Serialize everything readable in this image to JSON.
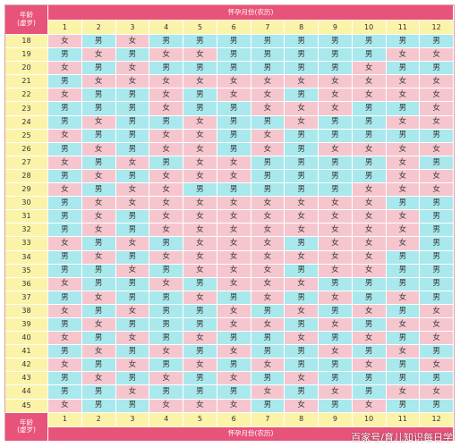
{
  "header": {
    "corner_line1": "年龄",
    "corner_line2": "(虚岁)",
    "title": "怀孕月份(农历)"
  },
  "months": [
    "1",
    "2",
    "3",
    "4",
    "5",
    "6",
    "7",
    "8",
    "9",
    "10",
    "11",
    "12"
  ],
  "labels": {
    "girl": "女",
    "boy": "男"
  },
  "colors": {
    "header": "#e8537a",
    "yellow": "#fbf3a8",
    "girl": "#f6c6cf",
    "boy": "#a9e8ed"
  },
  "rows": [
    {
      "age": "18",
      "cells": [
        "女",
        "男",
        "女",
        "男",
        "男",
        "男",
        "男",
        "男",
        "男",
        "男",
        "男",
        "男"
      ]
    },
    {
      "age": "19",
      "cells": [
        "男",
        "女",
        "男",
        "女",
        "女",
        "男",
        "男",
        "男",
        "男",
        "男",
        "女",
        "女"
      ]
    },
    {
      "age": "20",
      "cells": [
        "女",
        "男",
        "女",
        "男",
        "男",
        "男",
        "男",
        "男",
        "男",
        "女",
        "男",
        "男"
      ]
    },
    {
      "age": "21",
      "cells": [
        "男",
        "女",
        "女",
        "女",
        "女",
        "女",
        "女",
        "女",
        "女",
        "女",
        "女",
        "女"
      ]
    },
    {
      "age": "22",
      "cells": [
        "女",
        "男",
        "男",
        "女",
        "男",
        "女",
        "女",
        "男",
        "女",
        "女",
        "女",
        "女"
      ]
    },
    {
      "age": "23",
      "cells": [
        "男",
        "男",
        "男",
        "女",
        "男",
        "男",
        "女",
        "女",
        "女",
        "男",
        "男",
        "女"
      ]
    },
    {
      "age": "24",
      "cells": [
        "男",
        "女",
        "男",
        "男",
        "女",
        "男",
        "男",
        "女",
        "男",
        "男",
        "女",
        "女"
      ]
    },
    {
      "age": "25",
      "cells": [
        "女",
        "男",
        "男",
        "女",
        "女",
        "男",
        "女",
        "男",
        "男",
        "男",
        "男",
        "男"
      ]
    },
    {
      "age": "26",
      "cells": [
        "男",
        "女",
        "男",
        "女",
        "女",
        "男",
        "女",
        "男",
        "女",
        "女",
        "女",
        "女"
      ]
    },
    {
      "age": "27",
      "cells": [
        "女",
        "男",
        "女",
        "男",
        "女",
        "女",
        "男",
        "男",
        "男",
        "男",
        "女",
        "男"
      ]
    },
    {
      "age": "28",
      "cells": [
        "男",
        "女",
        "男",
        "女",
        "女",
        "女",
        "男",
        "男",
        "男",
        "男",
        "女",
        "女"
      ]
    },
    {
      "age": "29",
      "cells": [
        "女",
        "男",
        "女",
        "女",
        "男",
        "男",
        "男",
        "男",
        "男",
        "女",
        "女",
        "女"
      ]
    },
    {
      "age": "30",
      "cells": [
        "男",
        "女",
        "女",
        "女",
        "女",
        "女",
        "女",
        "女",
        "女",
        "女",
        "男",
        "男"
      ]
    },
    {
      "age": "31",
      "cells": [
        "男",
        "女",
        "男",
        "女",
        "女",
        "女",
        "女",
        "女",
        "女",
        "女",
        "女",
        "男"
      ]
    },
    {
      "age": "32",
      "cells": [
        "男",
        "女",
        "男",
        "女",
        "女",
        "女",
        "女",
        "女",
        "女",
        "女",
        "女",
        "男"
      ]
    },
    {
      "age": "33",
      "cells": [
        "女",
        "男",
        "女",
        "男",
        "女",
        "女",
        "女",
        "男",
        "女",
        "女",
        "女",
        "男"
      ]
    },
    {
      "age": "34",
      "cells": [
        "男",
        "女",
        "男",
        "女",
        "女",
        "女",
        "女",
        "女",
        "女",
        "女",
        "男",
        "男"
      ]
    },
    {
      "age": "35",
      "cells": [
        "男",
        "男",
        "女",
        "男",
        "女",
        "女",
        "女",
        "男",
        "女",
        "女",
        "男",
        "男"
      ]
    },
    {
      "age": "36",
      "cells": [
        "女",
        "男",
        "男",
        "女",
        "男",
        "女",
        "女",
        "女",
        "男",
        "男",
        "男",
        "男"
      ]
    },
    {
      "age": "37",
      "cells": [
        "男",
        "女",
        "男",
        "男",
        "女",
        "男",
        "女",
        "男",
        "女",
        "男",
        "女",
        "男"
      ]
    },
    {
      "age": "38",
      "cells": [
        "女",
        "男",
        "女",
        "男",
        "男",
        "女",
        "男",
        "女",
        "男",
        "女",
        "男",
        "女"
      ]
    },
    {
      "age": "39",
      "cells": [
        "男",
        "女",
        "男",
        "男",
        "男",
        "女",
        "女",
        "男",
        "女",
        "男",
        "女",
        "女"
      ]
    },
    {
      "age": "40",
      "cells": [
        "女",
        "男",
        "女",
        "男",
        "女",
        "男",
        "男",
        "女",
        "男",
        "女",
        "男",
        "女"
      ]
    },
    {
      "age": "41",
      "cells": [
        "男",
        "女",
        "男",
        "女",
        "男",
        "女",
        "男",
        "男",
        "女",
        "男",
        "女",
        "男"
      ]
    },
    {
      "age": "42",
      "cells": [
        "女",
        "男",
        "女",
        "男",
        "女",
        "男",
        "女",
        "男",
        "男",
        "女",
        "男",
        "女"
      ]
    },
    {
      "age": "43",
      "cells": [
        "男",
        "女",
        "男",
        "女",
        "男",
        "女",
        "男",
        "女",
        "男",
        "男",
        "男",
        "男"
      ]
    },
    {
      "age": "44",
      "cells": [
        "男",
        "男",
        "女",
        "男",
        "男",
        "男",
        "女",
        "男",
        "女",
        "男",
        "女",
        "女"
      ]
    },
    {
      "age": "45",
      "cells": [
        "女",
        "男",
        "男",
        "女",
        "女",
        "女",
        "男",
        "女",
        "男",
        "女",
        "男",
        "男"
      ]
    }
  ],
  "watermark": "百家号/育儿知识每日学"
}
